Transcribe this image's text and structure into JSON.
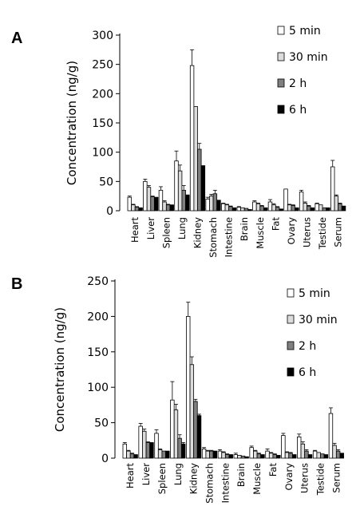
{
  "chart_data": [
    {
      "type": "bar",
      "panel": "A",
      "ylabel": "Concentration (ng/g)",
      "ylim": [
        0,
        300
      ],
      "yticks": [
        "0",
        "50",
        "100",
        "150",
        "200",
        "250",
        "300"
      ],
      "categories": [
        "Heart",
        "Liver",
        "Spleen",
        "Lung",
        "Kidney",
        "Stomach",
        "Intestine",
        "Brain",
        "Muscle",
        "Fat",
        "Ovary",
        "Uterus",
        "Testide",
        "Serum"
      ],
      "legend_position": "top-right",
      "series": [
        {
          "name": "5 min",
          "color": "#ffffff",
          "values": [
            23,
            50,
            35,
            85,
            248,
            20,
            12,
            6,
            15,
            15,
            37,
            32,
            12,
            75
          ],
          "errors": [
            2,
            4,
            6,
            17,
            27,
            3,
            1,
            1,
            2,
            4,
            0,
            3,
            1,
            11
          ]
        },
        {
          "name": "30 min",
          "color": "#dcdcdc",
          "values": [
            10,
            40,
            15,
            68,
            178,
            25,
            10,
            5,
            12,
            10,
            10,
            13,
            10,
            25
          ],
          "errors": [
            1,
            3,
            2,
            10,
            0,
            3,
            1,
            0,
            1,
            2,
            1,
            2,
            0,
            2
          ]
        },
        {
          "name": "2 h",
          "color": "#7f7f7f",
          "values": [
            6,
            24,
            10,
            35,
            105,
            29,
            7,
            4,
            8,
            6,
            9,
            8,
            5,
            12
          ],
          "errors": [
            1,
            1,
            1,
            8,
            10,
            6,
            1,
            0,
            1,
            1,
            1,
            1,
            0,
            1
          ]
        },
        {
          "name": "6 h",
          "color": "#000000",
          "values": [
            5,
            23,
            10,
            27,
            77,
            18,
            5,
            2,
            5,
            3,
            5,
            5,
            5,
            8
          ],
          "errors": [
            0,
            0,
            0,
            0,
            0,
            0,
            0,
            0,
            0,
            0,
            0,
            0,
            0,
            0
          ]
        }
      ]
    },
    {
      "type": "bar",
      "panel": "B",
      "ylabel": "Concentration (ng/g)",
      "ylim": [
        0,
        250
      ],
      "yticks": [
        "0",
        "50",
        "100",
        "150",
        "200",
        "250"
      ],
      "categories": [
        "Heart",
        "Liver",
        "Spleen",
        "Lung",
        "Kidney",
        "Stomach",
        "Intestine",
        "Brain",
        "Muscle",
        "Fat",
        "Ovary",
        "Uterus",
        "Testide",
        "Serum"
      ],
      "legend_position": "top-right",
      "series": [
        {
          "name": "5 min",
          "color": "#ffffff",
          "values": [
            20,
            45,
            35,
            82,
            200,
            13,
            10,
            5,
            15,
            10,
            32,
            30,
            10,
            63
          ],
          "errors": [
            2,
            4,
            5,
            26,
            20,
            2,
            2,
            2,
            2,
            3,
            3,
            4,
            1,
            8
          ]
        },
        {
          "name": "30 min",
          "color": "#dcdcdc",
          "values": [
            10,
            38,
            12,
            68,
            132,
            10,
            8,
            4,
            10,
            7,
            8,
            20,
            8,
            18
          ],
          "errors": [
            1,
            3,
            1,
            8,
            11,
            1,
            1,
            0,
            1,
            1,
            1,
            3,
            0,
            3
          ]
        },
        {
          "name": "2 h",
          "color": "#7f7f7f",
          "values": [
            6,
            22,
            10,
            28,
            80,
            10,
            5,
            3,
            6,
            5,
            7,
            10,
            6,
            10
          ],
          "errors": [
            1,
            1,
            0,
            5,
            3,
            1,
            1,
            0,
            1,
            1,
            1,
            2,
            0,
            2
          ]
        },
        {
          "name": "6 h",
          "color": "#000000",
          "values": [
            5,
            22,
            10,
            20,
            60,
            10,
            5,
            2,
            5,
            4,
            5,
            5,
            5,
            7
          ],
          "errors": [
            0,
            0,
            0,
            2,
            2,
            0,
            0,
            0,
            0,
            0,
            0,
            0,
            0,
            0
          ]
        }
      ]
    }
  ]
}
